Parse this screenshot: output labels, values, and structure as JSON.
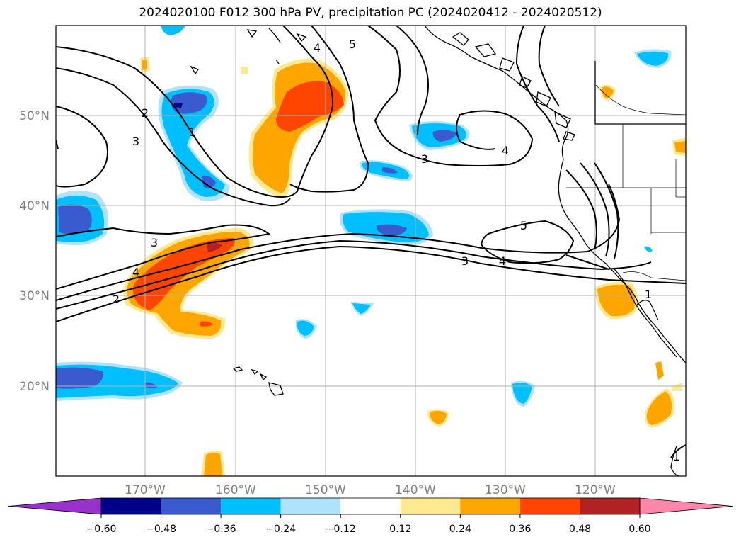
{
  "title": "2024020100 F012 300 hPa PV, precipitation PC (2024020412 - 2024020512)",
  "lat_labels": [
    "50°N",
    "40°N",
    "30°N",
    "20°N"
  ],
  "lon_labels": [
    "170°W",
    "160°W",
    "150°W",
    "140°W",
    "130°W",
    "120°W"
  ],
  "contour_labels": [
    "4",
    "5",
    "2",
    "3",
    "1",
    "3",
    "4",
    "5",
    "3",
    "4",
    "3",
    "4",
    "2",
    "1",
    "1"
  ],
  "colorbar": {
    "ticks": [
      "−0.60",
      "−0.48",
      "−0.36",
      "−0.24",
      "−0.12",
      "0.12",
      "0.24",
      "0.36",
      "0.48",
      "0.60"
    ],
    "colors": [
      "#9932cc",
      "#00008b",
      "#3a5bd0",
      "#00bfff",
      "#aee3fb",
      "#ffffff",
      "#fde98f",
      "#ffa500",
      "#ff4500",
      "#b22222",
      "#ff88aa"
    ]
  },
  "colors": {
    "neg_strong": "#00008b",
    "neg_medium": "#3a5bd0",
    "neg_moderate": "#00bfff",
    "neg_weak": "#aee3fb",
    "pos_weak": "#fde98f",
    "pos_moderate": "#ffa500",
    "pos_medium": "#ff4500",
    "pos_strong": "#b22222",
    "contour": "#000000",
    "grid": "#b0b0b0"
  }
}
